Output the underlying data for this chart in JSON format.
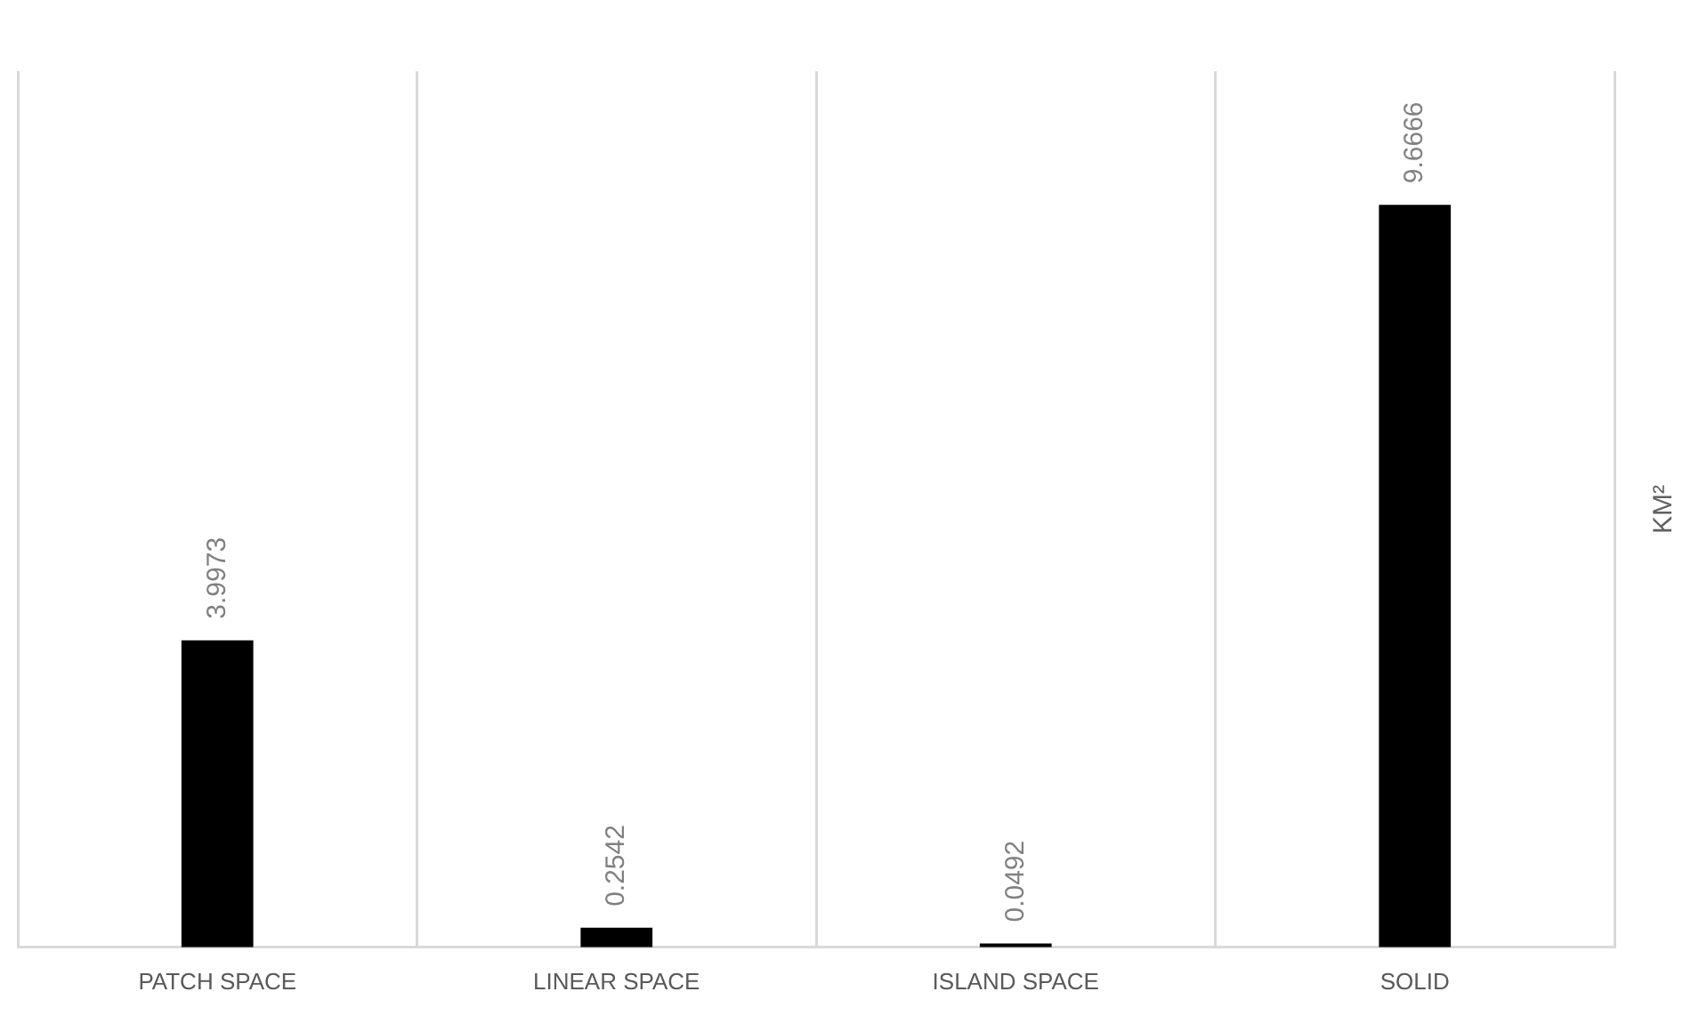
{
  "chart_data": {
    "type": "bar",
    "categories": [
      "PATCH SPACE",
      "LINEAR SPACE",
      "ISLAND SPACE",
      "SOLID"
    ],
    "values": [
      3.9973,
      0.2542,
      0.0492,
      9.6666
    ],
    "color": "#000000",
    "ylabel": "KM²",
    "data_labels": true,
    "grid": "x",
    "legend": false
  }
}
